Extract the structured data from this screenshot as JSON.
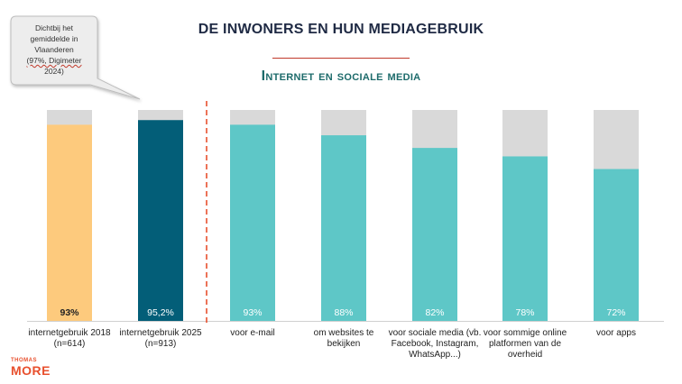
{
  "title": "DE INWONERS EN HUN MEDIAGEBRUIK",
  "subtitle": "Internet en sociale media",
  "callout": {
    "lines": [
      "Dichtbij het",
      "gemiddelde in",
      "Vlaanderen",
      "(97%, Digimeter",
      "2024)"
    ]
  },
  "logo": {
    "line1": "THOMAS",
    "line2": "MORE"
  },
  "colors": {
    "bar_2018": "#fdca7d",
    "bar_2025": "#035e78",
    "bar_items": "#5ec7c7",
    "bar_background": "#d9d9d9",
    "divider": "#e8502e"
  },
  "chart_data": {
    "type": "bar",
    "ylim": [
      0,
      100
    ],
    "categories": [
      [
        "internetgebruik 2018",
        "(n=614)"
      ],
      [
        "internetgebruik 2025",
        "(n=913)"
      ],
      [
        "voor e-mail"
      ],
      [
        "om websites te",
        "bekijken"
      ],
      [
        "voor sociale media (vb.",
        "Facebook, Instagram,",
        "WhatsApp...)"
      ],
      [
        "voor sommige online",
        "platformen van de",
        "overheid"
      ],
      [
        "voor apps"
      ]
    ],
    "values": [
      93,
      95.2,
      93,
      88,
      82,
      78,
      72
    ],
    "value_labels": [
      "93%",
      "95,2%",
      "93%",
      "88%",
      "82%",
      "78%",
      "72%"
    ]
  }
}
